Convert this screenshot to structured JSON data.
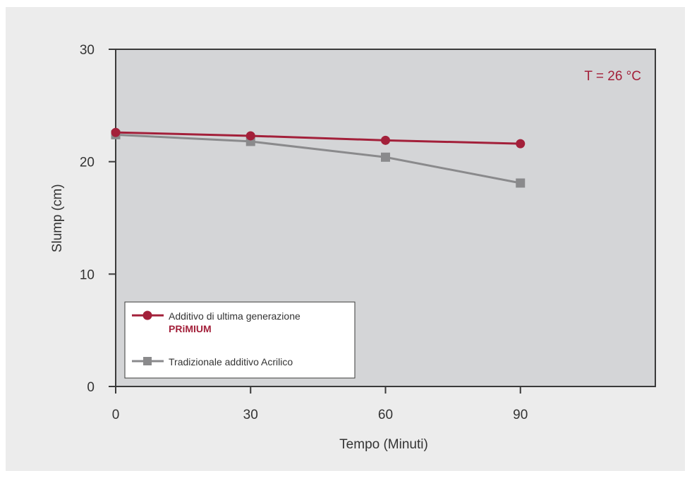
{
  "colors": {
    "page_background": "#ececec",
    "plot_background": "#d4d5d7",
    "primium": "#a3203a",
    "acrylic": "#8a8a8c"
  },
  "chart_data": {
    "type": "line",
    "x": [
      0,
      30,
      60,
      90
    ],
    "xlabel": "Tempo (Minuti)",
    "ylabel": "Slump (cm)",
    "xlim": [
      0,
      120
    ],
    "ylim": [
      0,
      30
    ],
    "xticks": [
      "0",
      "30",
      "60",
      "90"
    ],
    "yticks": [
      "0",
      "10",
      "20",
      "30"
    ],
    "grid": false,
    "legend_position": "bottom-left",
    "annotation": "T = 26 °C",
    "series": [
      {
        "name": "Additivo di ultima generazione",
        "sublabel": "PRiMIUM",
        "marker": "circle",
        "color": "#a3203a",
        "values": [
          22.6,
          22.3,
          21.9,
          21.6
        ]
      },
      {
        "name": "Tradizionale additivo Acrilico",
        "marker": "square",
        "color": "#8a8a8c",
        "values": [
          22.4,
          21.8,
          20.4,
          18.1
        ]
      }
    ]
  }
}
